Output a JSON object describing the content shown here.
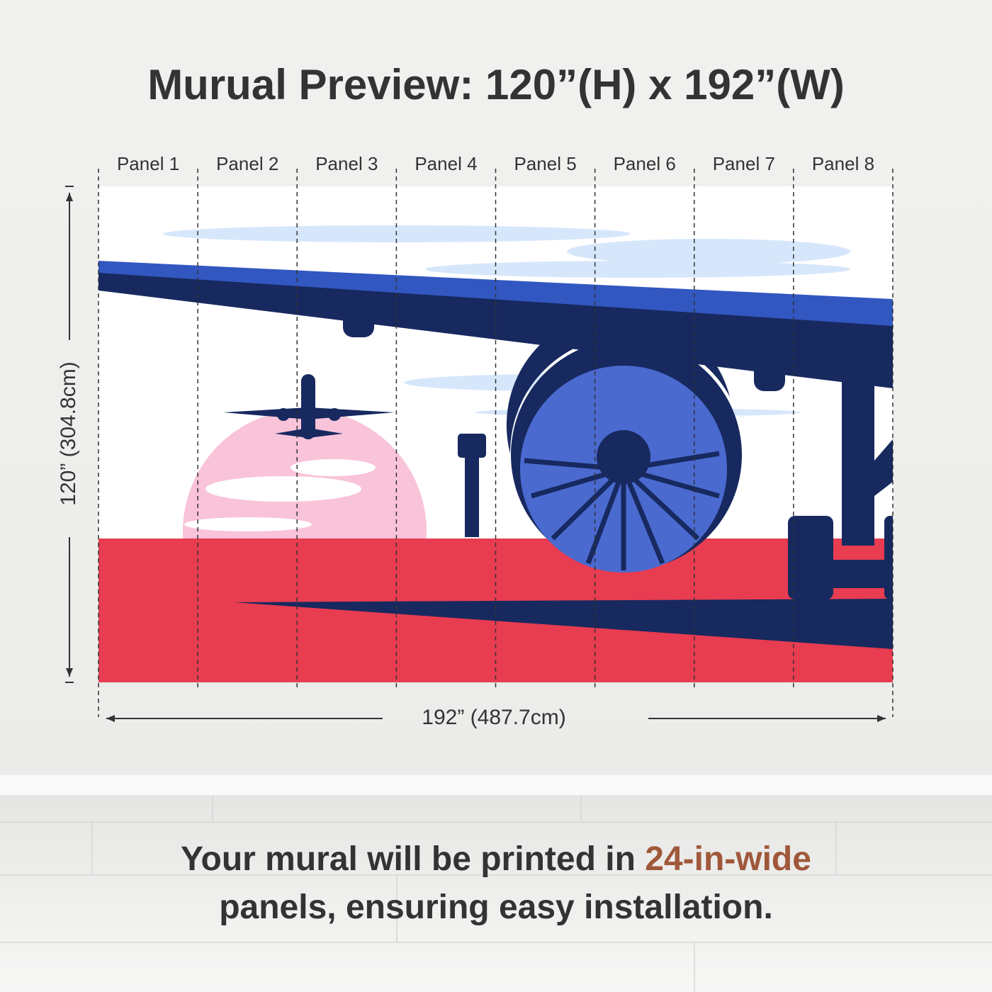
{
  "title": "Murual Preview: 120”(H) x 192”(W)",
  "panels": [
    "Panel 1",
    "Panel 2",
    "Panel 3",
    "Panel 4",
    "Panel 5",
    "Panel 6",
    "Panel 7",
    "Panel 8"
  ],
  "height_label": "120” (304.8cm)",
  "width_label": "192” (487.7cm)",
  "caption": {
    "line1": "Your mural will be printed in",
    "highlight": "24-in-wide",
    "line2": "panels, ensuring easy installation."
  }
}
